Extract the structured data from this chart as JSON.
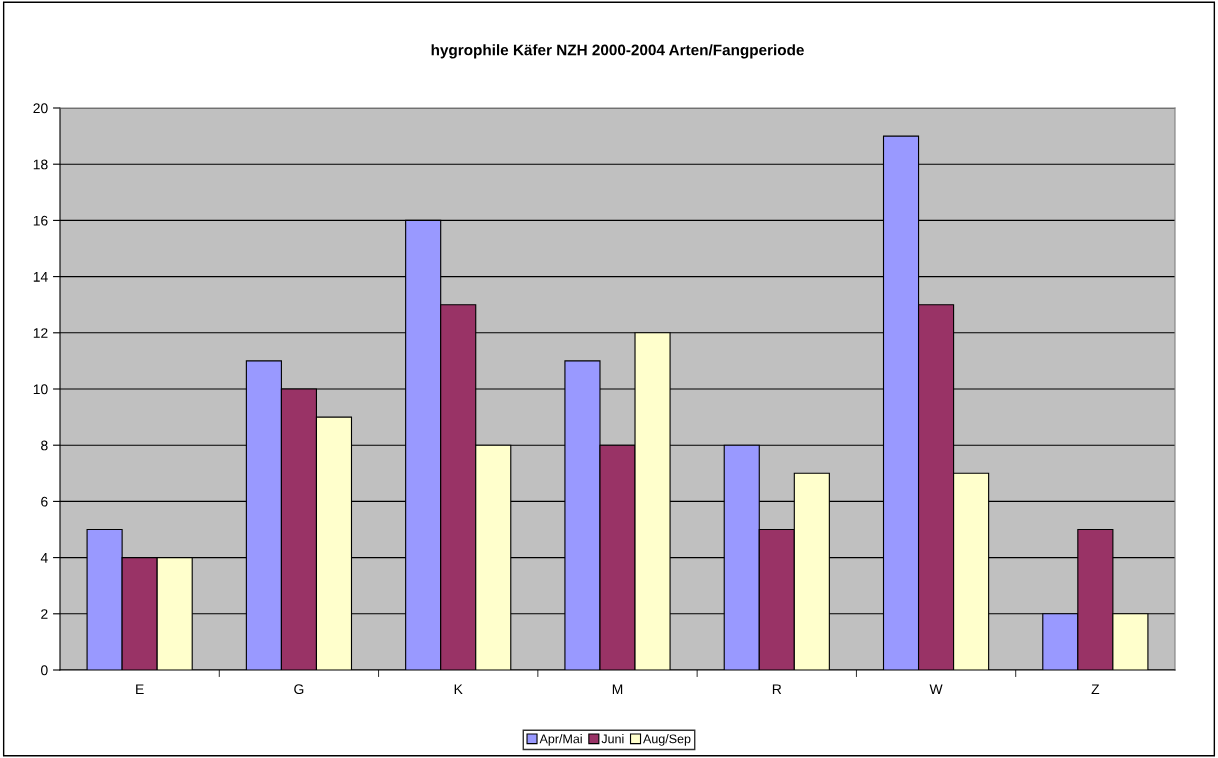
{
  "chart_data": {
    "type": "bar",
    "title": "hygrophile Käfer NZH 2000-2004 Arten/Fangperiode",
    "categories": [
      "E",
      "G",
      "K",
      "M",
      "R",
      "W",
      "Z"
    ],
    "series": [
      {
        "name": "Apr/Mai",
        "color": "#9999ff",
        "values": [
          5,
          11,
          16,
          11,
          8,
          19,
          2
        ]
      },
      {
        "name": "Juni",
        "color": "#993366",
        "values": [
          4,
          10,
          13,
          8,
          5,
          13,
          5
        ]
      },
      {
        "name": "Aug/Sep",
        "color": "#ffffcc",
        "values": [
          4,
          9,
          8,
          12,
          7,
          7,
          2
        ]
      }
    ],
    "ylim": [
      0,
      20
    ],
    "yticks": [
      0,
      2,
      4,
      6,
      8,
      10,
      12,
      14,
      16,
      18,
      20
    ],
    "grid": "y",
    "legend": "bottom"
  }
}
